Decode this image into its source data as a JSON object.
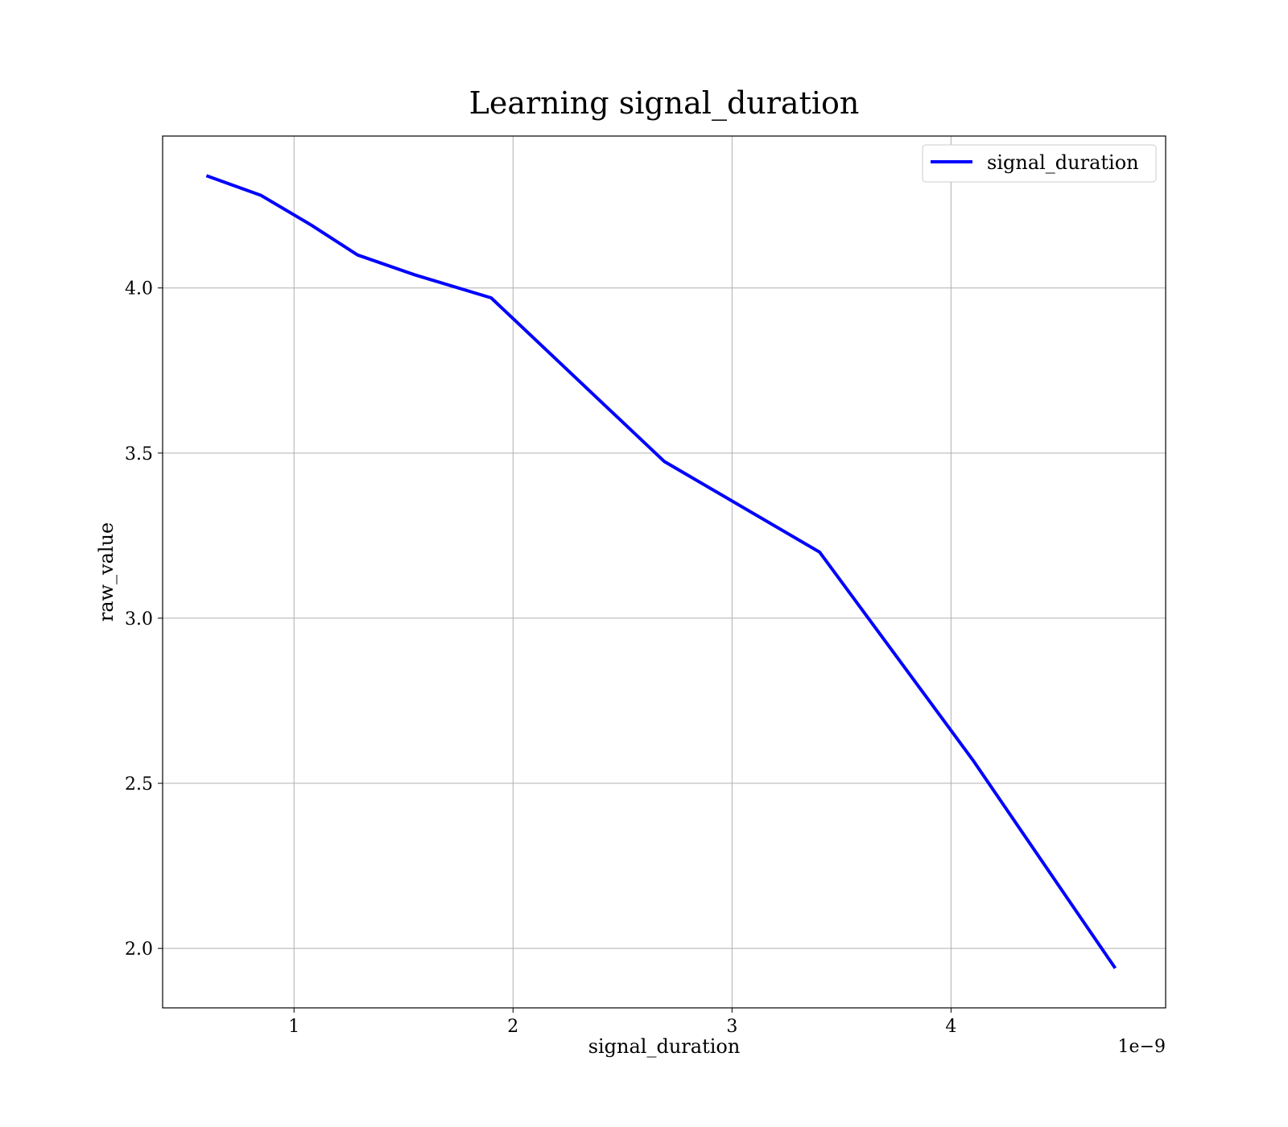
{
  "chart_data": {
    "type": "line",
    "title": "Learning signal_duration",
    "xlabel": "signal_duration",
    "ylabel": "raw_value",
    "x_offset_label": "1e−9",
    "xlim": [
      4e-10,
      4.98e-09
    ],
    "ylim": [
      1.82,
      4.46
    ],
    "x_ticks": [
      1e-09,
      2e-09,
      3e-09,
      4e-09
    ],
    "x_tick_labels": [
      "1",
      "2",
      "3",
      "4"
    ],
    "y_ticks": [
      2.0,
      2.5,
      3.0,
      3.5,
      4.0
    ],
    "y_tick_labels": [
      "2.0",
      "2.5",
      "3.0",
      "3.5",
      "4.0"
    ],
    "grid": true,
    "legend_position": "top-right",
    "series": [
      {
        "name": "signal_duration",
        "color": "#0000ff",
        "x": [
          6e-10,
          8.5e-10,
          1.08e-09,
          1.29e-09,
          1.55e-09,
          1.9e-09,
          2.69e-09,
          3.4e-09,
          4.1e-09,
          4.75e-09
        ],
        "y": [
          4.34,
          4.28,
          4.19,
          4.1,
          4.04,
          3.97,
          3.475,
          3.2,
          2.57,
          1.94
        ]
      }
    ]
  }
}
